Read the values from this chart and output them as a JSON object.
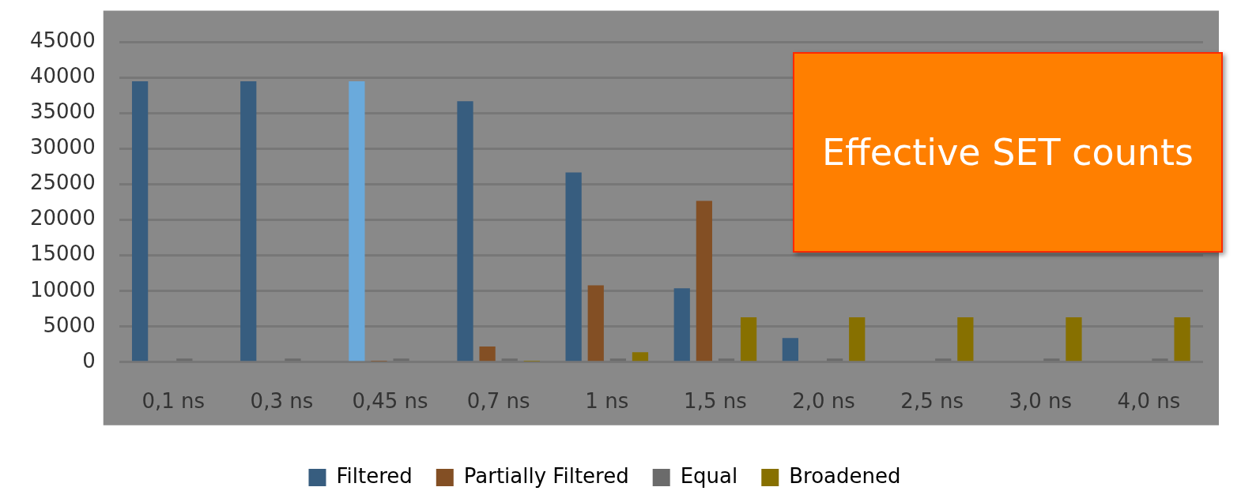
{
  "chart_data": {
    "type": "bar",
    "categories": [
      "0,1 ns",
      "0,3 ns",
      "0,45 ns",
      "0,7 ns",
      "1 ns",
      "1,5 ns",
      "2,0 ns",
      "2,5 ns",
      "3,0 ns",
      "4,0 ns"
    ],
    "series": [
      {
        "name": "Filtered",
        "color": "#375d7f",
        "colors": [
          "#375d7f",
          "#375d7f",
          "#6aaadc",
          "#375d7f",
          "#375d7f",
          "#375d7f",
          "#375d7f",
          "#375d7f",
          "#375d7f",
          "#375d7f"
        ],
        "values": [
          39500,
          39500,
          39500,
          36700,
          26700,
          10400,
          3400,
          null,
          null,
          null
        ]
      },
      {
        "name": "Partially Filtered",
        "color": "#834f24",
        "values": [
          0,
          0,
          100,
          2200,
          10800,
          22700,
          null,
          null,
          null,
          null
        ]
      },
      {
        "name": "Equal",
        "color": "#6b6b6b",
        "values": [
          500,
          500,
          500,
          500,
          500,
          500,
          500,
          500,
          500,
          500
        ]
      },
      {
        "name": "Broadened",
        "color": "#877000",
        "values": [
          0,
          0,
          0,
          100,
          1400,
          6300,
          6300,
          6300,
          6300,
          6300
        ]
      }
    ],
    "ylim": [
      0,
      45000
    ],
    "yticks": [
      0,
      5000,
      10000,
      15000,
      20000,
      25000,
      30000,
      35000,
      40000,
      45000
    ],
    "grid": "y",
    "legend": "bottom",
    "annotations": [
      "Effective SET counts"
    ]
  }
}
